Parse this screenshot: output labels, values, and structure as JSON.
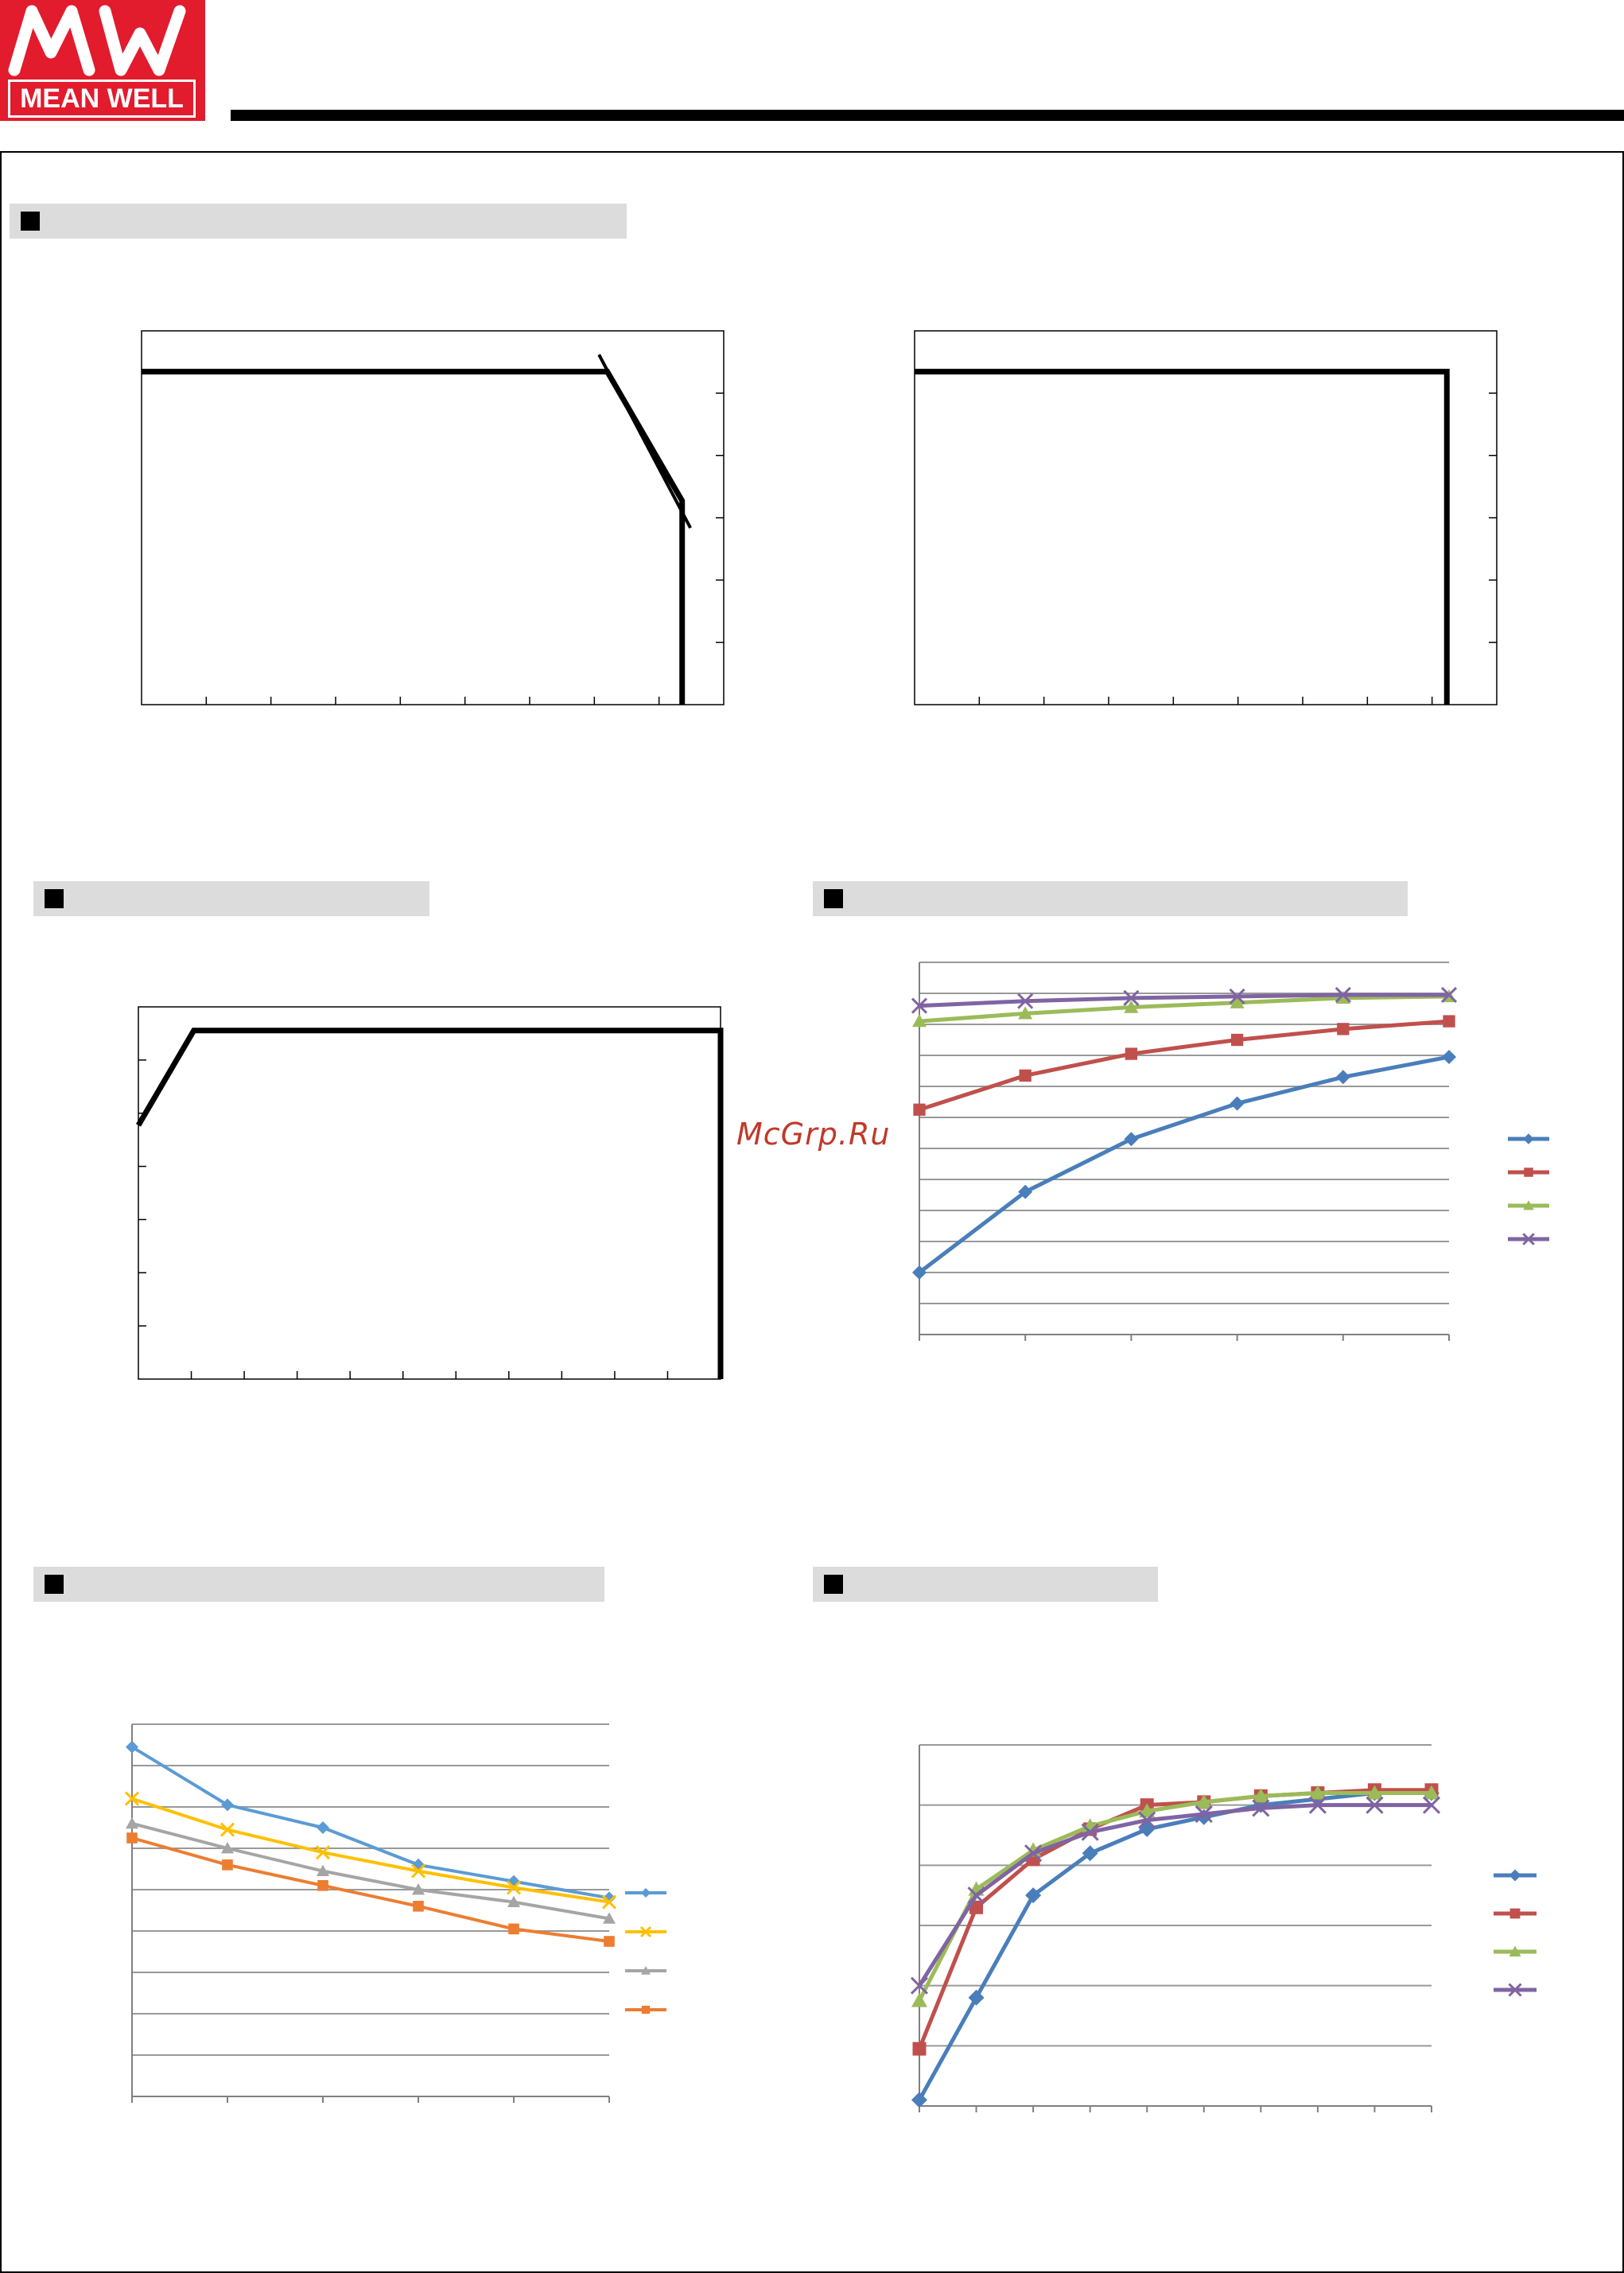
{
  "logo": {
    "text": "MEAN WELL",
    "brand_color": "#e21b2d"
  },
  "watermark": {
    "text": "McGrp.Ru"
  },
  "colors": {
    "blue": "#4a7ebb",
    "red": "#c0504d",
    "green": "#9bbb59",
    "purple": "#8064a2",
    "light_blue": "#5b9bd5",
    "gold": "#ffc000",
    "gray": "#a5a5a5",
    "orange": "#ed7d31",
    "black": "#000000",
    "grid": "#999999"
  },
  "chart_data": [
    {
      "id": "derating-1",
      "type": "line",
      "xlim": [
        0,
        35
      ],
      "ylim": [
        0,
        110
      ],
      "lines": [
        {
          "points": [
            [
              0,
              98
            ],
            [
              28,
              98
            ],
            [
              32.5,
              60
            ],
            [
              32.5,
              0
            ]
          ]
        },
        {
          "points": [
            [
              27.5,
              103
            ],
            [
              33,
              52
            ]
          ]
        }
      ]
    },
    {
      "id": "derating-2",
      "type": "line",
      "xlim": [
        0,
        35
      ],
      "ylim": [
        0,
        110
      ],
      "lines": [
        {
          "points": [
            [
              0,
              98
            ],
            [
              32,
              98
            ],
            [
              32,
              0
            ]
          ]
        }
      ]
    },
    {
      "id": "derating-3",
      "type": "line",
      "xlim": [
        0,
        105
      ],
      "ylim": [
        0,
        110
      ],
      "lines": [
        {
          "points": [
            [
              0,
              75
            ],
            [
              10,
              103
            ],
            [
              105,
              103
            ],
            [
              105,
              0
            ]
          ]
        }
      ]
    },
    {
      "id": "efficiency-vs-load",
      "type": "line",
      "xlim": [
        0,
        5
      ],
      "ylim": [
        0,
        12
      ],
      "series": [
        {
          "color": "blue",
          "marker": "diamond",
          "values": [
            [
              0,
              2
            ],
            [
              1,
              4.6
            ],
            [
              2,
              6.3
            ],
            [
              3,
              7.45
            ],
            [
              4,
              8.3
            ],
            [
              5,
              8.95
            ]
          ]
        },
        {
          "color": "red",
          "marker": "square",
          "values": [
            [
              0,
              7.25
            ],
            [
              1,
              8.35
            ],
            [
              2,
              9.05
            ],
            [
              3,
              9.5
            ],
            [
              4,
              9.85
            ],
            [
              5,
              10.1
            ]
          ]
        },
        {
          "color": "green",
          "marker": "triangle",
          "values": [
            [
              0,
              10.1
            ],
            [
              1,
              10.35
            ],
            [
              2,
              10.55
            ],
            [
              3,
              10.7
            ],
            [
              4,
              10.85
            ],
            [
              5,
              10.9
            ]
          ]
        },
        {
          "color": "purple",
          "marker": "x",
          "values": [
            [
              0,
              10.6
            ],
            [
              1,
              10.75
            ],
            [
              2,
              10.85
            ],
            [
              3,
              10.9
            ],
            [
              4,
              10.95
            ],
            [
              5,
              10.95
            ]
          ]
        }
      ]
    },
    {
      "id": "chart-5",
      "type": "line",
      "xlim": [
        0,
        5
      ],
      "ylim": [
        0,
        9
      ],
      "series": [
        {
          "color": "light_blue",
          "marker": "diamond",
          "values": [
            [
              0,
              8.45
            ],
            [
              1,
              7.05
            ],
            [
              2,
              6.5
            ],
            [
              3,
              5.6
            ],
            [
              4,
              5.2
            ],
            [
              5,
              4.8
            ]
          ]
        },
        {
          "color": "gold",
          "marker": "x",
          "values": [
            [
              0,
              7.2
            ],
            [
              1,
              6.45
            ],
            [
              2,
              5.9
            ],
            [
              3,
              5.45
            ],
            [
              4,
              5.05
            ],
            [
              5,
              4.7
            ]
          ]
        },
        {
          "color": "gray",
          "marker": "triangle",
          "values": [
            [
              0,
              6.6
            ],
            [
              1,
              6.0
            ],
            [
              2,
              5.45
            ],
            [
              3,
              5.0
            ],
            [
              4,
              4.7
            ],
            [
              5,
              4.3
            ]
          ]
        },
        {
          "color": "orange",
          "marker": "square",
          "values": [
            [
              0,
              6.25
            ],
            [
              1,
              5.6
            ],
            [
              2,
              5.1
            ],
            [
              3,
              4.6
            ],
            [
              4,
              4.05
            ],
            [
              5,
              3.75
            ]
          ]
        }
      ]
    },
    {
      "id": "chart-6",
      "type": "line",
      "xlim": [
        0,
        9
      ],
      "ylim": [
        0,
        6
      ],
      "series": [
        {
          "color": "blue",
          "marker": "diamond",
          "values": [
            [
              0,
              0.1
            ],
            [
              1,
              1.8
            ],
            [
              2,
              3.5
            ],
            [
              3,
              4.2
            ],
            [
              4,
              4.6
            ],
            [
              5,
              4.8
            ],
            [
              6,
              5.0
            ],
            [
              7,
              5.1
            ],
            [
              8,
              5.2
            ],
            [
              9,
              5.2
            ]
          ]
        },
        {
          "color": "red",
          "marker": "square",
          "values": [
            [
              0,
              0.95
            ],
            [
              1,
              3.3
            ],
            [
              2,
              4.1
            ],
            [
              3,
              4.6
            ],
            [
              4,
              5.0
            ],
            [
              5,
              5.05
            ],
            [
              6,
              5.15
            ],
            [
              7,
              5.2
            ],
            [
              8,
              5.25
            ],
            [
              9,
              5.25
            ]
          ]
        },
        {
          "color": "green",
          "marker": "triangle",
          "values": [
            [
              0,
              1.75
            ],
            [
              1,
              3.6
            ],
            [
              2,
              4.25
            ],
            [
              3,
              4.65
            ],
            [
              4,
              4.9
            ],
            [
              5,
              5.05
            ],
            [
              6,
              5.15
            ],
            [
              7,
              5.2
            ],
            [
              8,
              5.2
            ],
            [
              9,
              5.2
            ]
          ]
        },
        {
          "color": "purple",
          "marker": "x",
          "values": [
            [
              0,
              2.0
            ],
            [
              1,
              3.5
            ],
            [
              2,
              4.2
            ],
            [
              3,
              4.55
            ],
            [
              4,
              4.75
            ],
            [
              5,
              4.85
            ],
            [
              6,
              4.95
            ],
            [
              7,
              5.0
            ],
            [
              8,
              5.0
            ],
            [
              9,
              5.0
            ]
          ]
        }
      ]
    }
  ]
}
